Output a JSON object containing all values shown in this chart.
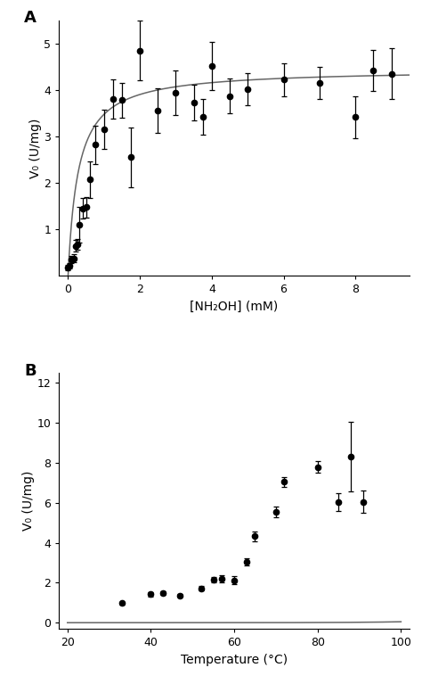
{
  "panel_A": {
    "title": "A",
    "xlabel": "[NH₂OH] (mM)",
    "ylabel": "V₀ (U/mg)",
    "xlim": [
      -0.25,
      9.5
    ],
    "ylim": [
      0,
      5.5
    ],
    "xticks": [
      0,
      2,
      4,
      6,
      8
    ],
    "yticks": [
      1,
      2,
      3,
      4,
      5
    ],
    "x": [
      0.0,
      0.05,
      0.1,
      0.15,
      0.2,
      0.25,
      0.3,
      0.4,
      0.5,
      0.6,
      0.75,
      1.0,
      1.25,
      1.5,
      1.75,
      2.0,
      2.5,
      3.0,
      3.5,
      3.75,
      4.0,
      4.5,
      5.0,
      6.0,
      7.0,
      8.0,
      8.5,
      9.0
    ],
    "y": [
      0.18,
      0.22,
      0.35,
      0.38,
      0.65,
      0.68,
      1.1,
      1.45,
      1.48,
      2.07,
      2.82,
      3.15,
      3.8,
      3.78,
      2.55,
      4.85,
      3.55,
      3.95,
      3.73,
      3.42,
      4.52,
      3.87,
      4.02,
      4.22,
      4.15,
      3.42,
      4.42,
      4.35
    ],
    "yerr": [
      0.05,
      0.05,
      0.08,
      0.08,
      0.12,
      0.12,
      0.38,
      0.22,
      0.22,
      0.4,
      0.42,
      0.42,
      0.42,
      0.38,
      0.65,
      0.65,
      0.48,
      0.48,
      0.38,
      0.38,
      0.52,
      0.38,
      0.35,
      0.35,
      0.35,
      0.45,
      0.45,
      0.55
    ],
    "fit_Vmax": 4.45,
    "fit_Km": 0.28
  },
  "panel_B": {
    "title": "B",
    "xlabel": "Temperature (°C)",
    "ylabel": "V₀ (U/mg)",
    "xlim": [
      18,
      102
    ],
    "ylim": [
      -0.3,
      12.5
    ],
    "xticks": [
      20,
      40,
      60,
      80,
      100
    ],
    "yticks": [
      0,
      2,
      4,
      6,
      8,
      10,
      12
    ],
    "x": [
      33,
      40,
      43,
      47,
      52,
      55,
      57,
      60,
      63,
      65,
      70,
      72,
      80,
      85,
      88,
      91
    ],
    "y": [
      0.98,
      1.42,
      1.48,
      1.37,
      1.72,
      2.15,
      2.2,
      2.12,
      3.05,
      4.32,
      5.55,
      7.05,
      7.8,
      6.05,
      8.32,
      6.05
    ],
    "yerr": [
      0.06,
      0.1,
      0.1,
      0.08,
      0.1,
      0.13,
      0.18,
      0.2,
      0.18,
      0.25,
      0.28,
      0.25,
      0.28,
      0.45,
      1.75,
      0.55
    ],
    "fit_A": 8.5e-06,
    "fit_b": 0.0862
  },
  "marker_color": "#000000",
  "line_color": "#666666",
  "background_color": "#ffffff",
  "panel_label_fontsize": 13,
  "axis_label_fontsize": 10,
  "tick_fontsize": 9
}
